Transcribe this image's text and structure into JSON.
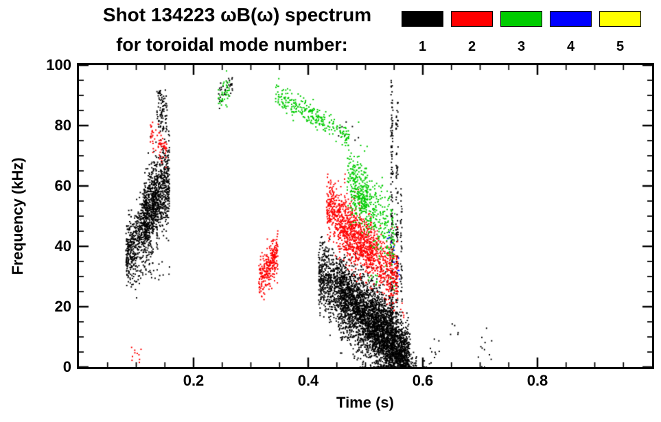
{
  "chart_data": {
    "type": "scatter",
    "title": "Shot 134223 ωB(ω) spectrum",
    "subtitle": "for toroidal mode number:",
    "xlabel": "Time (s)",
    "ylabel": "Frequency (kHz)",
    "xlim": [
      0,
      1.0
    ],
    "ylim": [
      0,
      100
    ],
    "xticks": [
      0.2,
      0.4,
      0.6,
      0.8
    ],
    "xtick_labels": [
      "0.2",
      "0.4",
      "0.6",
      "0.8"
    ],
    "yticks": [
      0,
      20,
      40,
      60,
      80,
      100
    ],
    "ytick_labels": [
      "0",
      "20",
      "40",
      "60",
      "80",
      "100"
    ],
    "x_minor_step": 0.05,
    "y_minor_step": 5,
    "grid": false,
    "legend_position": "top-right",
    "legend": [
      {
        "label": "1",
        "color": "#000000"
      },
      {
        "label": "2",
        "color": "#ff0000"
      },
      {
        "label": "3",
        "color": "#00cc00"
      },
      {
        "label": "4",
        "color": "#0000ff"
      },
      {
        "label": "5",
        "color": "#ffff00"
      }
    ],
    "series": [
      {
        "name": "toroidal mode n=1",
        "label": "1",
        "color": "#000000",
        "clusters": [
          {
            "n": 700,
            "t": [
              0.082,
              0.138
            ],
            "f": [
              36,
              56
            ],
            "spread": 5.5
          },
          {
            "n": 800,
            "t": [
              0.112,
              0.158
            ],
            "f": [
              48,
              63
            ],
            "spread": 7
          },
          {
            "n": 90,
            "t": [
              0.136,
              0.154
            ],
            "f": [
              78,
              92
            ],
            "spread": 0,
            "uniform": true
          },
          {
            "n": 40,
            "t": [
              0.09,
              0.16
            ],
            "f": [
              30,
              32
            ],
            "spread": 2
          },
          {
            "n": 35,
            "t": [
              0.243,
              0.268
            ],
            "f": [
              90,
              94
            ],
            "spread": 2
          },
          {
            "n": 2200,
            "t": [
              0.418,
              0.578
            ],
            "f": [
              31,
              3
            ],
            "spread": 5.5
          },
          {
            "n": 1300,
            "t": [
              0.455,
              0.55
            ],
            "f": [
              24,
              9
            ],
            "spread": 7
          },
          {
            "n": 700,
            "t": [
              0.515,
              0.575
            ],
            "f": [
              12,
              1
            ],
            "spread": 5
          },
          {
            "n": 160,
            "t": [
              0.544,
              0.548
            ],
            "f": [
              1,
              95
            ],
            "spread": 0,
            "uniform": true
          },
          {
            "n": 110,
            "t": [
              0.553,
              0.557
            ],
            "f": [
              3,
              88
            ],
            "spread": 0,
            "uniform": true
          },
          {
            "n": 50,
            "t": [
              0.561,
              0.564
            ],
            "f": [
              5,
              60
            ],
            "spread": 0,
            "uniform": true
          },
          {
            "n": 40,
            "t": [
              0.565,
              0.59
            ],
            "f": [
              3,
              1
            ],
            "spread": 1.5
          },
          {
            "n": 14,
            "t": [
              0.6,
              0.63
            ],
            "f": [
              2,
              7
            ],
            "spread": 3
          },
          {
            "n": 12,
            "t": [
              0.693,
              0.722
            ],
            "f": [
              4,
              9
            ],
            "spread": 4
          },
          {
            "n": 5,
            "t": [
              0.648,
              0.662
            ],
            "f": [
              12,
              13
            ],
            "spread": 1.5
          },
          {
            "n": 8,
            "t": [
              0.452,
              0.492
            ],
            "f": [
              78,
              80
            ],
            "spread": 2
          }
        ]
      },
      {
        "name": "toroidal mode n=2",
        "label": "2",
        "color": "#ff0000",
        "clusters": [
          {
            "n": 70,
            "t": [
              0.124,
              0.154
            ],
            "f": [
              78,
              71
            ],
            "spread": 2.5
          },
          {
            "n": 280,
            "t": [
              0.314,
              0.347
            ],
            "f": [
              29,
              38
            ],
            "spread": 3.5
          },
          {
            "n": 1000,
            "t": [
              0.432,
              0.557
            ],
            "f": [
              54,
              29
            ],
            "spread": 5
          },
          {
            "n": 350,
            "t": [
              0.452,
              0.515
            ],
            "f": [
              47,
              37
            ],
            "spread": 5
          },
          {
            "n": 10,
            "t": [
              0.088,
              0.112
            ],
            "f": [
              4,
              5
            ],
            "spread": 1.5
          },
          {
            "n": 8,
            "t": [
              0.545,
              0.567
            ],
            "f": [
              21,
              17
            ],
            "spread": 2.5
          }
        ]
      },
      {
        "name": "toroidal mode n=3",
        "label": "3",
        "color": "#00cc00",
        "clusters": [
          {
            "n": 40,
            "t": [
              0.243,
              0.263
            ],
            "f": [
              88,
              93
            ],
            "spread": 2.5
          },
          {
            "n": 230,
            "t": [
              0.343,
              0.452
            ],
            "f": [
              90,
              79
            ],
            "spread": 2
          },
          {
            "n": 40,
            "t": [
              0.455,
              0.472
            ],
            "f": [
              78,
              75
            ],
            "spread": 1.8
          },
          {
            "n": 380,
            "t": [
              0.468,
              0.552
            ],
            "f": [
              64,
              42
            ],
            "spread": 6
          },
          {
            "n": 160,
            "t": [
              0.473,
              0.503
            ],
            "f": [
              62,
              54
            ],
            "spread": 4.5
          },
          {
            "n": 10,
            "t": [
              0.503,
              0.522
            ],
            "f": [
              30,
              28
            ],
            "spread": 1.5
          }
        ]
      },
      {
        "name": "toroidal mode n=4",
        "label": "4",
        "color": "#0000ff",
        "clusters": [
          {
            "n": 7,
            "t": [
              0.538,
              0.551
            ],
            "f": [
              43,
              38
            ],
            "spread": 1.8
          },
          {
            "n": 5,
            "t": [
              0.554,
              0.562
            ],
            "f": [
              34,
              32
            ],
            "spread": 1.5
          }
        ]
      },
      {
        "name": "toroidal mode n=5",
        "label": "5",
        "color": "#ffff00",
        "clusters": []
      }
    ]
  }
}
